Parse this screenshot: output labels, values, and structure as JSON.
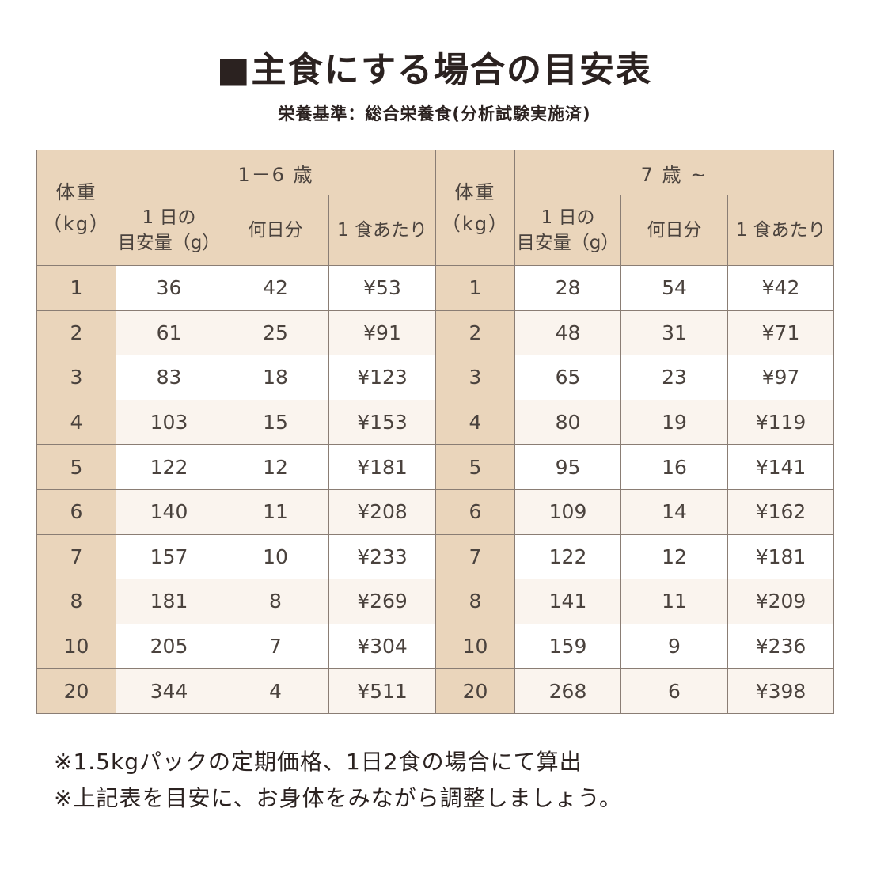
{
  "title": "■主食にする場合の目安表",
  "subtitle": "栄養基準：総合栄養食(分析試験実施済)",
  "table": {
    "weight_header_line1": "体重",
    "weight_header_line2": "（kg）",
    "group1_label": "1－6 歳",
    "group2_label": "7 歳 ~",
    "col_daily_line1": "1 日の",
    "col_daily_line2": "目安量（g）",
    "col_days": "何日分",
    "col_per_meal": "1 食あたり",
    "rows": [
      {
        "w1": "1",
        "a1": "36",
        "b1": "42",
        "c1": "¥53",
        "w2": "1",
        "a2": "28",
        "b2": "54",
        "c2": "¥42"
      },
      {
        "w1": "2",
        "a1": "61",
        "b1": "25",
        "c1": "¥91",
        "w2": "2",
        "a2": "48",
        "b2": "31",
        "c2": "¥71"
      },
      {
        "w1": "3",
        "a1": "83",
        "b1": "18",
        "c1": "¥123",
        "w2": "3",
        "a2": "65",
        "b2": "23",
        "c2": "¥97"
      },
      {
        "w1": "4",
        "a1": "103",
        "b1": "15",
        "c1": "¥153",
        "w2": "4",
        "a2": "80",
        "b2": "19",
        "c2": "¥119"
      },
      {
        "w1": "5",
        "a1": "122",
        "b1": "12",
        "c1": "¥181",
        "w2": "5",
        "a2": "95",
        "b2": "16",
        "c2": "¥141"
      },
      {
        "w1": "6",
        "a1": "140",
        "b1": "11",
        "c1": "¥208",
        "w2": "6",
        "a2": "109",
        "b2": "14",
        "c2": "¥162"
      },
      {
        "w1": "7",
        "a1": "157",
        "b1": "10",
        "c1": "¥233",
        "w2": "7",
        "a2": "122",
        "b2": "12",
        "c2": "¥181"
      },
      {
        "w1": "8",
        "a1": "181",
        "b1": "8",
        "c1": "¥269",
        "w2": "8",
        "a2": "141",
        "b2": "11",
        "c2": "¥209"
      },
      {
        "w1": "10",
        "a1": "205",
        "b1": "7",
        "c1": "¥304",
        "w2": "10",
        "a2": "159",
        "b2": "9",
        "c2": "¥236"
      },
      {
        "w1": "20",
        "a1": "344",
        "b1": "4",
        "c1": "¥511",
        "w2": "20",
        "a2": "268",
        "b2": "6",
        "c2": "¥398"
      }
    ]
  },
  "notes": [
    "※1.5kgパックの定期価格、1日2食の場合にて算出",
    "※上記表を目安に、お身体をみながら調整しましょう。"
  ],
  "colors": {
    "header_bg": "#ead5bb",
    "alt_row_bg": "#faf4ee",
    "border": "#8a7d74",
    "title_text": "#2b2220"
  }
}
